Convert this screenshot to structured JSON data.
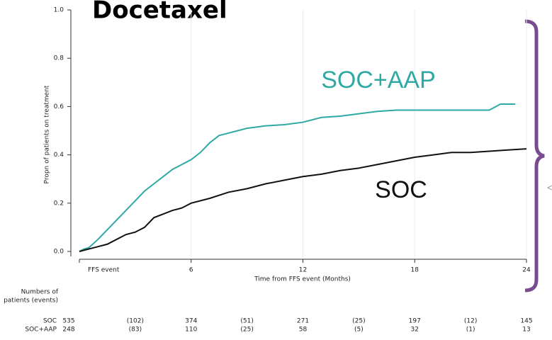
{
  "chart_data": {
    "type": "line",
    "title": "Docetaxel",
    "xlabel": "Time from FFS event (Months)",
    "ylabel": "Propn of patients on treatment",
    "xlim": [
      0,
      24
    ],
    "ylim": [
      0,
      1
    ],
    "xticks": [
      {
        "value": 0,
        "label": "FFS event"
      },
      6,
      12,
      18,
      24
    ],
    "yticks": [
      "0.0",
      "0.2",
      "0.4",
      "0.6",
      "0.8",
      "1.0"
    ],
    "grid": true,
    "series": [
      {
        "name": "SOC+AAP",
        "color": "#2fa9a4",
        "x": [
          0,
          0.25,
          0.5,
          1,
          1.5,
          2,
          2.5,
          3,
          3.5,
          4,
          4.5,
          5,
          5.5,
          6,
          6.5,
          7,
          7.5,
          8,
          8.5,
          9,
          10,
          11,
          12,
          13,
          14,
          15,
          16,
          17,
          18,
          20,
          22,
          22.6,
          23.4
        ],
        "values": [
          0,
          0.01,
          0.015,
          0.05,
          0.09,
          0.13,
          0.17,
          0.21,
          0.25,
          0.28,
          0.31,
          0.34,
          0.36,
          0.38,
          0.41,
          0.45,
          0.48,
          0.49,
          0.5,
          0.51,
          0.52,
          0.525,
          0.535,
          0.555,
          0.56,
          0.57,
          0.58,
          0.585,
          0.585,
          0.585,
          0.585,
          0.61,
          0.61
        ]
      },
      {
        "name": "SOC",
        "color": "#111111",
        "x": [
          0,
          0.5,
          1,
          1.5,
          2,
          2.5,
          3,
          3.5,
          4,
          4.5,
          5,
          5.5,
          6,
          7,
          8,
          9,
          10,
          11,
          12,
          13,
          14,
          15,
          16,
          17,
          18,
          19,
          20,
          21,
          22,
          23,
          24
        ],
        "values": [
          0,
          0.01,
          0.02,
          0.03,
          0.05,
          0.07,
          0.08,
          0.1,
          0.14,
          0.155,
          0.17,
          0.18,
          0.2,
          0.22,
          0.245,
          0.26,
          0.28,
          0.295,
          0.31,
          0.32,
          0.335,
          0.345,
          0.36,
          0.375,
          0.39,
          0.4,
          0.41,
          0.41,
          0.415,
          0.42,
          0.425
        ]
      }
    ],
    "risk_table": {
      "title": [
        "Numbers of",
        "patients (events)"
      ],
      "times": [
        0,
        3,
        6,
        9,
        12,
        15,
        18,
        21,
        24
      ],
      "rows": [
        {
          "name": "SOC",
          "values": [
            "535",
            "(102)",
            "374",
            "(51)",
            "271",
            "(25)",
            "197",
            "(12)",
            "145"
          ]
        },
        {
          "name": "SOC+AAP",
          "values": [
            "248",
            "(83)",
            "110",
            "(25)",
            "58",
            "(5)",
            "32",
            "(1)",
            "13"
          ]
        }
      ]
    }
  }
}
